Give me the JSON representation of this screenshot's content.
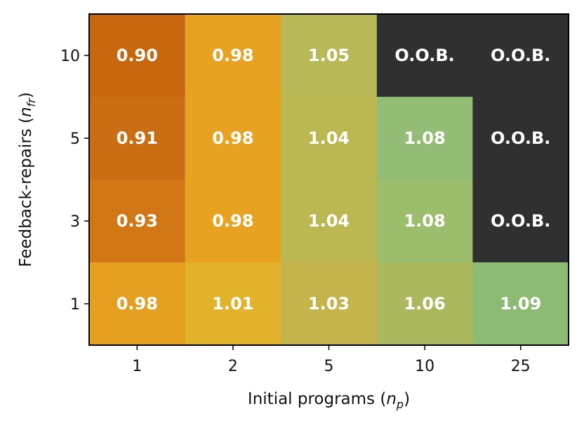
{
  "chart_data": {
    "type": "heatmap",
    "title": "",
    "xlabel": "Initial programs",
    "xlabel_symbol": "n",
    "xlabel_sub": "p",
    "ylabel": "Feedback-repairs",
    "ylabel_symbol": "n",
    "ylabel_sub": "fr",
    "x_categories": [
      "1",
      "2",
      "5",
      "10",
      "25"
    ],
    "y_categories": [
      "10",
      "5",
      "3",
      "1"
    ],
    "cells": [
      [
        {
          "label": "0.90",
          "value": 0.9,
          "color": "#c8680e"
        },
        {
          "label": "0.98",
          "value": 0.98,
          "color": "#e6a220"
        },
        {
          "label": "1.05",
          "value": 1.05,
          "color": "#b8b856"
        },
        {
          "label": "O.O.B.",
          "value": null,
          "color": "#303030"
        },
        {
          "label": "O.O.B.",
          "value": null,
          "color": "#303030"
        }
      ],
      [
        {
          "label": "0.91",
          "value": 0.91,
          "color": "#cb6d12"
        },
        {
          "label": "0.98",
          "value": 0.98,
          "color": "#e6a220"
        },
        {
          "label": "1.04",
          "value": 1.04,
          "color": "#bbb851"
        },
        {
          "label": "1.08",
          "value": 1.08,
          "color": "#93bd74"
        },
        {
          "label": "O.O.B.",
          "value": null,
          "color": "#303030"
        }
      ],
      [
        {
          "label": "0.93",
          "value": 0.93,
          "color": "#d27716"
        },
        {
          "label": "0.98",
          "value": 0.98,
          "color": "#e6a220"
        },
        {
          "label": "1.04",
          "value": 1.04,
          "color": "#bbb851"
        },
        {
          "label": "1.08",
          "value": 1.08,
          "color": "#9bbd6c"
        },
        {
          "label": "O.O.B.",
          "value": null,
          "color": "#303030"
        }
      ],
      [
        {
          "label": "0.98",
          "value": 0.98,
          "color": "#e59f21"
        },
        {
          "label": "1.01",
          "value": 1.01,
          "color": "#e2b22a"
        },
        {
          "label": "1.03",
          "value": 1.03,
          "color": "#c3b54c"
        },
        {
          "label": "1.06",
          "value": 1.06,
          "color": "#acb85e"
        },
        {
          "label": "1.09",
          "value": 1.09,
          "color": "#8cbb74"
        }
      ]
    ]
  }
}
